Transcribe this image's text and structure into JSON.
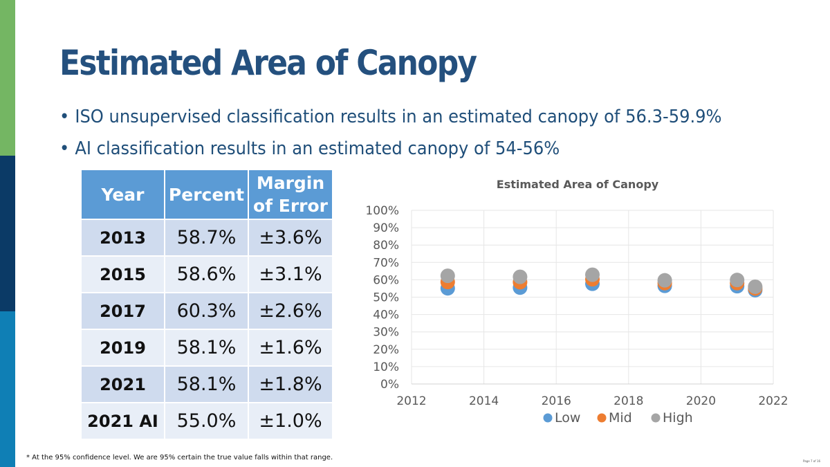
{
  "slide": {
    "title": "Estimated Area of Canopy",
    "bullet_marker": "•",
    "bullets": [
      "ISO unsupervised classification results in an estimated canopy of 56.3-59.9%",
      "AI classification results in an estimated canopy of 54-56%"
    ],
    "footnote": "* At the 95% confidence level. We are 95% certain the true value falls within that range.",
    "page_label": "Page 7 of 16"
  },
  "colors": {
    "stripe_top": "#74b663",
    "stripe_middle": "#0b3a66",
    "stripe_bottom": "#0f7fb5",
    "title": "#24507e",
    "table_header": "#5b9bd5",
    "low": "#5b9bd5",
    "mid": "#ed7d31",
    "high": "#a5a5a5"
  },
  "table": {
    "headers": {
      "year": "Year",
      "percent": "Percent",
      "margin_line1": "Margin",
      "margin_line2": "of Error"
    },
    "rows": [
      {
        "year": "2013",
        "percent": "58.7%",
        "margin": "±3.6%"
      },
      {
        "year": "2015",
        "percent": "58.6%",
        "margin": "±3.1%"
      },
      {
        "year": "2017",
        "percent": "60.3%",
        "margin": "±2.6%"
      },
      {
        "year": "2019",
        "percent": "58.1%",
        "margin": "±1.6%"
      },
      {
        "year": "2021",
        "percent": "58.1%",
        "margin": "±1.8%"
      },
      {
        "year": "2021 AI",
        "percent": "55.0%",
        "margin": "±1.0%"
      }
    ]
  },
  "chart_data": {
    "type": "scatter",
    "title": "Estimated Area of Canopy",
    "xlabel": "",
    "ylabel": "",
    "xlim": [
      2012,
      2022
    ],
    "ylim": [
      0,
      100
    ],
    "x_ticks": [
      2012,
      2014,
      2016,
      2018,
      2020,
      2022
    ],
    "y_ticks": [
      0,
      10,
      20,
      30,
      40,
      50,
      60,
      70,
      80,
      90,
      100
    ],
    "y_tick_labels": [
      "0%",
      "10%",
      "20%",
      "30%",
      "40%",
      "50%",
      "60%",
      "70%",
      "80%",
      "90%",
      "100%"
    ],
    "grid": true,
    "legend_position": "bottom",
    "series": [
      {
        "name": "Low",
        "x": [
          2013,
          2015,
          2017,
          2019,
          2021,
          2021.5
        ],
        "y": [
          55.1,
          55.5,
          57.7,
          56.5,
          56.3,
          54.0
        ]
      },
      {
        "name": "Mid",
        "x": [
          2013,
          2015,
          2017,
          2019,
          2021,
          2021.5
        ],
        "y": [
          58.7,
          58.6,
          60.3,
          58.1,
          58.1,
          55.0
        ]
      },
      {
        "name": "High",
        "x": [
          2013,
          2015,
          2017,
          2019,
          2021,
          2021.5
        ],
        "y": [
          62.3,
          61.7,
          62.9,
          59.7,
          59.9,
          56.0
        ]
      }
    ]
  }
}
